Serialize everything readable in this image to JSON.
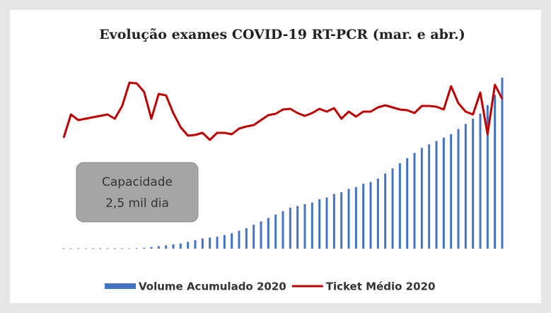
{
  "chart_data": {
    "type": "bar_line",
    "title": "Evolução exames COVID-19 RT-PCR (mar. e abr.)",
    "annotations": [
      "Capacidade",
      "2,5 mil dia"
    ],
    "categories": [
      null,
      null,
      null,
      null,
      null,
      null,
      null,
      null,
      null,
      null,
      null,
      null,
      null,
      null,
      null,
      null,
      null,
      null,
      null,
      null,
      null,
      null,
      null,
      null,
      null,
      null,
      null,
      null,
      null,
      null,
      null,
      null,
      null,
      null,
      null,
      null,
      null,
      null,
      null,
      null,
      null,
      null,
      null,
      null,
      null,
      null,
      null,
      null,
      null,
      null,
      null,
      null,
      null,
      null,
      null,
      null,
      null,
      null,
      null,
      null,
      null
    ],
    "ylim": [
      0,
      100
    ],
    "y2lim": [
      0,
      242
    ],
    "series": [
      {
        "name": "Volume Acumulado 2020",
        "type": "bar",
        "color": "#4472c4",
        "values": [
          0.2,
          0.2,
          0.2,
          0.2,
          0.2,
          0.2,
          0.2,
          0.2,
          0.2,
          0.2,
          0.2,
          0.5,
          1,
          1.5,
          2,
          2.5,
          3,
          4,
          5,
          6,
          6.5,
          7,
          8,
          9,
          10.5,
          12,
          14,
          16,
          18,
          20,
          22,
          24,
          25,
          26,
          27,
          29,
          30,
          32,
          33,
          35,
          36,
          38,
          39,
          41,
          44,
          47,
          50,
          53,
          56,
          59,
          61,
          63,
          65,
          67,
          70,
          73,
          76,
          79,
          84,
          90,
          100
        ]
      },
      {
        "name": "Ticket Médio 2020",
        "type": "line",
        "axis": "y2",
        "color": "#c00000",
        "values": [
          157,
          190,
          182,
          184,
          186,
          188,
          190,
          184,
          202,
          235,
          234,
          222,
          184,
          219,
          217,
          192,
          172,
          160,
          161,
          164,
          154,
          164,
          164,
          162,
          170,
          173,
          175,
          182,
          189,
          191,
          197,
          198,
          192,
          188,
          192,
          198,
          194,
          199,
          184,
          194,
          187,
          194,
          194,
          200,
          203,
          200,
          197,
          196,
          192,
          202,
          202,
          201,
          197,
          230,
          206,
          194,
          190,
          221,
          162,
          232,
          212
        ]
      }
    ]
  }
}
